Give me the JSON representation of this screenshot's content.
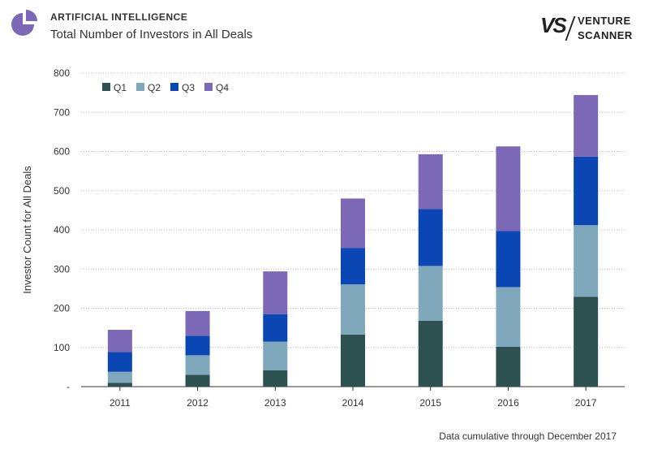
{
  "header": {
    "category": "ARTIFICIAL INTELLIGENCE",
    "subtitle": "Total Number of Investors in All Deals",
    "logo_icon": "pie-chart-icon",
    "brand_mark": "VS",
    "brand_line1": "VENTURE",
    "brand_line2": "SCANNER"
  },
  "footnote": "Data cumulative through December 2017",
  "chart_data": {
    "type": "bar",
    "stacked": true,
    "title": "",
    "xlabel": "",
    "ylabel": "Investor Count for All Deals",
    "ylim": [
      0,
      800
    ],
    "yticks": [
      0,
      100,
      200,
      300,
      400,
      500,
      600,
      700,
      800
    ],
    "ytick_labels": [
      "-",
      "100",
      "200",
      "300",
      "400",
      "500",
      "600",
      "700",
      "800"
    ],
    "grid": true,
    "legend_position": "top-left",
    "categories": [
      "2011",
      "2012",
      "2013",
      "2014",
      "2015",
      "2016",
      "2017"
    ],
    "series": [
      {
        "name": "Q1",
        "color": "#2d5050",
        "values": [
          10,
          30,
          42,
          133,
          168,
          102,
          229
        ]
      },
      {
        "name": "Q2",
        "color": "#7fa8bc",
        "values": [
          28,
          50,
          73,
          128,
          140,
          152,
          183
        ]
      },
      {
        "name": "Q3",
        "color": "#0a46b4",
        "values": [
          50,
          50,
          70,
          93,
          145,
          143,
          175
        ]
      },
      {
        "name": "Q4",
        "color": "#7b68b7",
        "values": [
          57,
          63,
          109,
          126,
          140,
          216,
          157
        ]
      }
    ]
  }
}
